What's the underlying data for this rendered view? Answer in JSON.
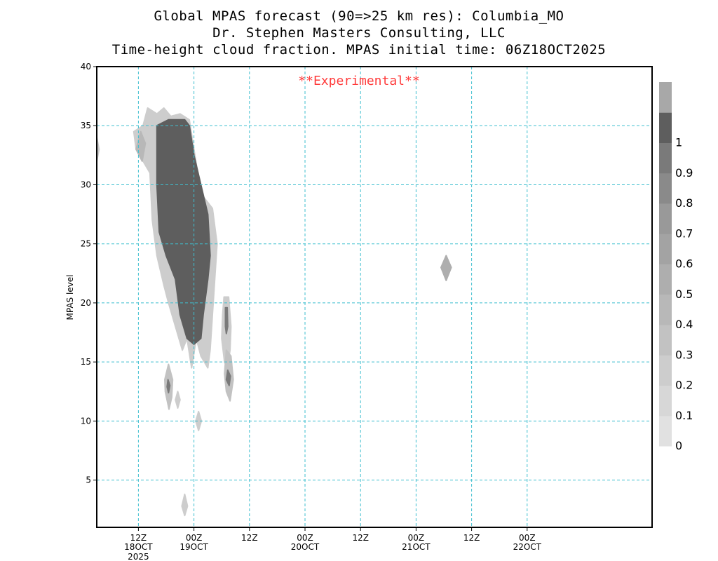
{
  "title": {
    "line1": "Global MPAS forecast (90=>25 km res): Columbia_MO",
    "line2": "Dr. Stephen Masters Consulting, LLC",
    "line3": "Time-height cloud fraction.   MPAS initial time: 06Z18OCT2025"
  },
  "annotation": "**Experimental**",
  "chart_data": {
    "type": "heatmap",
    "ylabel": "MPAS level",
    "ylim": [
      1,
      40
    ],
    "yticks": [
      5,
      10,
      15,
      20,
      25,
      30,
      35,
      40
    ],
    "xlim_hours_since_init": [
      -3,
      117
    ],
    "xticks": [
      {
        "hours": 6,
        "label": "12Z",
        "sub1": "18OCT",
        "sub2": "2025"
      },
      {
        "hours": 18,
        "label": "00Z",
        "sub1": "19OCT",
        "sub2": ""
      },
      {
        "hours": 30,
        "label": "12Z",
        "sub1": "",
        "sub2": ""
      },
      {
        "hours": 42,
        "label": "00Z",
        "sub1": "20OCT",
        "sub2": ""
      },
      {
        "hours": 54,
        "label": "12Z",
        "sub1": "",
        "sub2": ""
      },
      {
        "hours": 66,
        "label": "00Z",
        "sub1": "21OCT",
        "sub2": ""
      },
      {
        "hours": 78,
        "label": "12Z",
        "sub1": "",
        "sub2": ""
      },
      {
        "hours": 90,
        "label": "00Z",
        "sub1": "22OCT",
        "sub2": ""
      }
    ],
    "grid": true,
    "colorbar": {
      "labels": [
        "0",
        "0.1",
        "0.2",
        "0.3",
        "0.4",
        "0.5",
        "0.6",
        "0.7",
        "0.8",
        "0.9",
        "1"
      ],
      "colors": [
        "#e1e1e1",
        "#d7d7d7",
        "#cdcdcd",
        "#c2c2c2",
        "#b8b8b8",
        "#aeaeae",
        "#a3a3a3",
        "#999999",
        "#8a8a8a",
        "#7a7a7a",
        "#5e5e5e",
        "#a8a8a8"
      ]
    },
    "cloud_regions": [
      {
        "name": "main cloud mass",
        "fraction": 1.0,
        "points": [
          [
            10,
            35
          ],
          [
            12.5,
            35.5
          ],
          [
            16,
            35.5
          ],
          [
            17,
            35
          ],
          [
            18,
            32.5
          ],
          [
            19.5,
            30
          ],
          [
            21,
            27.5
          ],
          [
            21.5,
            24
          ],
          [
            21,
            22
          ],
          [
            20,
            19
          ],
          [
            19.5,
            17
          ],
          [
            18,
            16.5
          ],
          [
            16.5,
            17
          ],
          [
            15,
            19
          ],
          [
            14,
            22
          ],
          [
            12,
            24
          ],
          [
            10.5,
            26
          ],
          [
            10,
            30
          ]
        ]
      },
      {
        "name": "main cloud halo",
        "fraction": 0.2,
        "points": [
          [
            8,
            36.5
          ],
          [
            10,
            36
          ],
          [
            11.5,
            36.5
          ],
          [
            13,
            35.8
          ],
          [
            15,
            36
          ],
          [
            17,
            35.5
          ],
          [
            18,
            33
          ],
          [
            19,
            30.5
          ],
          [
            20,
            29
          ],
          [
            22,
            28
          ],
          [
            23,
            25
          ],
          [
            22.5,
            22
          ],
          [
            22,
            19
          ],
          [
            21.5,
            16
          ],
          [
            21,
            14.5
          ],
          [
            19.5,
            15.5
          ],
          [
            18.5,
            17
          ],
          [
            17.5,
            14.5
          ],
          [
            16.5,
            17
          ],
          [
            15.5,
            16
          ],
          [
            14,
            18
          ],
          [
            12.5,
            20
          ],
          [
            11.5,
            21.5
          ],
          [
            10,
            24
          ],
          [
            9,
            27
          ],
          [
            8.5,
            31
          ],
          [
            7,
            32
          ],
          [
            5.5,
            33
          ],
          [
            5,
            34.5
          ],
          [
            7,
            35
          ]
        ]
      },
      {
        "name": "upper-left patch",
        "fraction": 0.4,
        "points": [
          [
            5.5,
            33
          ],
          [
            6.5,
            34.5
          ],
          [
            7.5,
            33.5
          ],
          [
            6.8,
            32
          ]
        ]
      },
      {
        "name": "column near 20Z",
        "fraction": 0.2,
        "points": [
          [
            24.5,
            20.5
          ],
          [
            25.5,
            20.5
          ],
          [
            26,
            18
          ],
          [
            25.8,
            16
          ],
          [
            25.2,
            14.5
          ],
          [
            24.6,
            15
          ],
          [
            24,
            17
          ],
          [
            24.2,
            19
          ]
        ]
      },
      {
        "name": "column near 20Z core",
        "fraction": 0.9,
        "points": [
          [
            24.8,
            19.6
          ],
          [
            25.2,
            19.6
          ],
          [
            25.3,
            18
          ],
          [
            25,
            17.4
          ],
          [
            24.8,
            18
          ]
        ]
      },
      {
        "name": "low cloud near 21Z",
        "fraction": 0.3,
        "points": [
          [
            25,
            16
          ],
          [
            26,
            15.5
          ],
          [
            26.5,
            13.5
          ],
          [
            25.8,
            11.7
          ],
          [
            25,
            12.5
          ],
          [
            24.6,
            14
          ]
        ]
      },
      {
        "name": "low cloud near 21Z core",
        "fraction": 0.9,
        "points": [
          [
            25.3,
            14.3
          ],
          [
            25.9,
            13.8
          ],
          [
            25.6,
            13
          ],
          [
            25,
            13.5
          ]
        ]
      },
      {
        "name": "low cloud near 15Z",
        "fraction": 0.3,
        "points": [
          [
            12.5,
            14.8
          ],
          [
            13.4,
            13.5
          ],
          [
            13.2,
            12
          ],
          [
            12.6,
            11
          ],
          [
            11.8,
            12.5
          ],
          [
            11.7,
            13.5
          ]
        ]
      },
      {
        "name": "low cloud near 15Z core",
        "fraction": 0.9,
        "points": [
          [
            12.4,
            13.5
          ],
          [
            12.8,
            13
          ],
          [
            12.5,
            12.4
          ],
          [
            12.2,
            12.9
          ]
        ]
      },
      {
        "name": "low cloud near 16Z",
        "fraction": 0.2,
        "points": [
          [
            14.5,
            12.5
          ],
          [
            15,
            11.8
          ],
          [
            14.5,
            11.1
          ],
          [
            14,
            11.8
          ]
        ]
      },
      {
        "name": "cloud at level 10",
        "fraction": 0.2,
        "points": [
          [
            19,
            10.8
          ],
          [
            19.6,
            10
          ],
          [
            19,
            9.2
          ],
          [
            18.4,
            10
          ]
        ]
      },
      {
        "name": "cloud at level 3",
        "fraction": 0.2,
        "points": [
          [
            16,
            3.8
          ],
          [
            16.6,
            2.8
          ],
          [
            16,
            2
          ],
          [
            15.4,
            2.8
          ]
        ]
      },
      {
        "name": "edge cloud level 33",
        "fraction": 0.2,
        "points": [
          [
            -3,
            34
          ],
          [
            -2.5,
            33
          ],
          [
            -3,
            32
          ]
        ]
      },
      {
        "name": "isolated cloud near 21OCT 18Z",
        "fraction": 0.5,
        "points": [
          [
            72.5,
            24
          ],
          [
            73.6,
            23
          ],
          [
            72.5,
            21.9
          ],
          [
            71.4,
            23
          ]
        ]
      }
    ]
  }
}
